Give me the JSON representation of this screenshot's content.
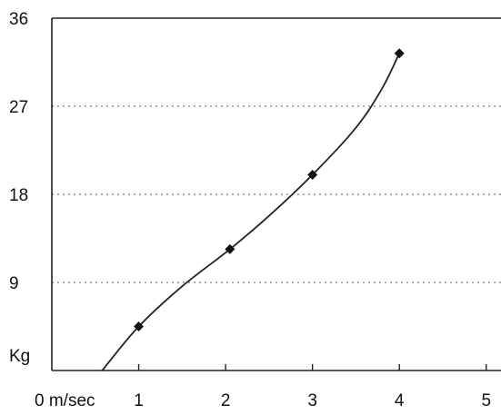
{
  "chart_data": {
    "type": "line",
    "title": "",
    "xlabel": "",
    "ylabel": "",
    "y_unit_label": "Kg",
    "x_origin_label": "0 m/sec",
    "xlim": [
      0,
      5
    ],
    "ylim": [
      0,
      36
    ],
    "x_ticks": [
      {
        "value": 1,
        "label": "1"
      },
      {
        "value": 2,
        "label": "2"
      },
      {
        "value": 3,
        "label": "3"
      },
      {
        "value": 4,
        "label": "4"
      },
      {
        "value": 5,
        "label": "5"
      }
    ],
    "y_ticks": [
      {
        "value": 9,
        "label": "9"
      },
      {
        "value": 18,
        "label": "18"
      },
      {
        "value": 27,
        "label": "27"
      },
      {
        "value": 36,
        "label": "36"
      }
    ],
    "grid": {
      "horizontal": true,
      "vertical": false,
      "style": "dotted"
    },
    "points": [
      {
        "x": 1.0,
        "y": 4.5
      },
      {
        "x": 2.05,
        "y": 12.4
      },
      {
        "x": 3.0,
        "y": 20.0
      },
      {
        "x": 4.0,
        "y": 32.4
      }
    ],
    "curve": [
      {
        "x": 0.58,
        "y": 0.0
      },
      {
        "x": 1.0,
        "y": 4.5
      },
      {
        "x": 1.5,
        "y": 8.6
      },
      {
        "x": 2.05,
        "y": 12.4
      },
      {
        "x": 2.5,
        "y": 15.8
      },
      {
        "x": 3.0,
        "y": 20.0
      },
      {
        "x": 3.5,
        "y": 24.8
      },
      {
        "x": 3.8,
        "y": 28.8
      },
      {
        "x": 4.0,
        "y": 32.4
      }
    ],
    "colors": {
      "line": "#222222",
      "marker": "#111111",
      "grid": "#555555"
    }
  }
}
